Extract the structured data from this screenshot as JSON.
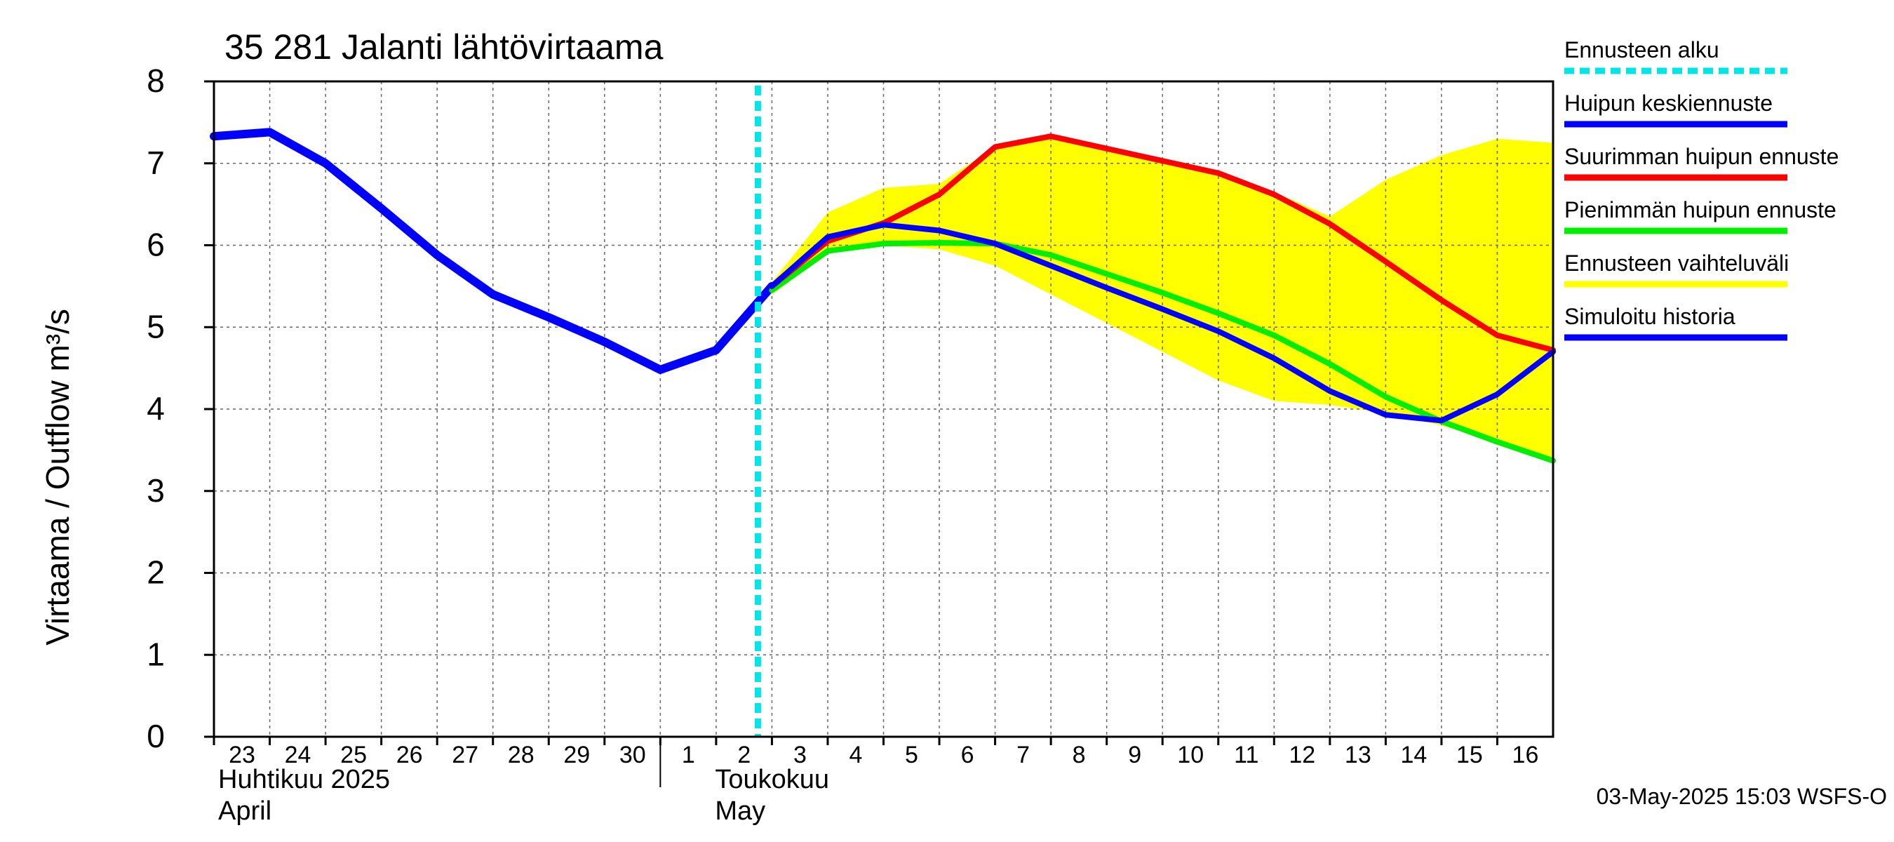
{
  "chart_data": {
    "type": "line",
    "title": "35 281 Jalanti lähtövirtaama",
    "ylabel": "Virtaama / Outflow    m³/s",
    "ylim": [
      0,
      8
    ],
    "yticks": [
      0,
      1,
      2,
      3,
      4,
      5,
      6,
      7,
      8
    ],
    "xlim": [
      "2025-04-23",
      "2025-05-17"
    ],
    "grid": true,
    "x_tick_labels": [
      {
        "date": "2025-04-23",
        "label": "23"
      },
      {
        "date": "2025-04-24",
        "label": "24"
      },
      {
        "date": "2025-04-25",
        "label": "25"
      },
      {
        "date": "2025-04-26",
        "label": "26"
      },
      {
        "date": "2025-04-27",
        "label": "27"
      },
      {
        "date": "2025-04-28",
        "label": "28"
      },
      {
        "date": "2025-04-29",
        "label": "29"
      },
      {
        "date": "2025-04-30",
        "label": "30"
      },
      {
        "date": "2025-05-01",
        "label": "1"
      },
      {
        "date": "2025-05-02",
        "label": "2"
      },
      {
        "date": "2025-05-03",
        "label": "3"
      },
      {
        "date": "2025-05-04",
        "label": "4"
      },
      {
        "date": "2025-05-05",
        "label": "5"
      },
      {
        "date": "2025-05-06",
        "label": "6"
      },
      {
        "date": "2025-05-07",
        "label": "7"
      },
      {
        "date": "2025-05-08",
        "label": "8"
      },
      {
        "date": "2025-05-09",
        "label": "9"
      },
      {
        "date": "2025-05-10",
        "label": "10"
      },
      {
        "date": "2025-05-11",
        "label": "11"
      },
      {
        "date": "2025-05-12",
        "label": "12"
      },
      {
        "date": "2025-05-13",
        "label": "13"
      },
      {
        "date": "2025-05-14",
        "label": "14"
      },
      {
        "date": "2025-05-15",
        "label": "15"
      },
      {
        "date": "2025-05-16",
        "label": "16"
      }
    ],
    "month_labels": [
      {
        "date": "2025-04-23",
        "line1": "Huhtikuu  2025",
        "line2": "April"
      },
      {
        "date": "2025-05-01",
        "line1": "Toukokuu",
        "line2": "May"
      }
    ],
    "forecast_start": "2025-05-03",
    "legend": {
      "placement": "right",
      "items": [
        {
          "label": "Ennusteen alku",
          "color": "#00e5e5",
          "style": "dashed"
        },
        {
          "label": "Huipun keskiennuste",
          "color": "#0000ff",
          "style": "solid"
        },
        {
          "label": "Suurimman huipun ennuste",
          "color": "#ff0000",
          "style": "solid"
        },
        {
          "label": "Pienimmän huipun ennuste",
          "color": "#00ee00",
          "style": "solid"
        },
        {
          "label": "Ennusteen vaihteluväli",
          "color": "#ffff00",
          "style": "solid"
        },
        {
          "label": "Simuloitu historia",
          "color": "#0000ff",
          "style": "solid"
        }
      ]
    },
    "series": [
      {
        "name": "Ennusteen vaihteluväli",
        "type": "band",
        "color": "#ffff00",
        "x": [
          "2025-05-03",
          "2025-05-04",
          "2025-05-05",
          "2025-05-06",
          "2025-05-07",
          "2025-05-08",
          "2025-05-09",
          "2025-05-10",
          "2025-05-11",
          "2025-05-12",
          "2025-05-13",
          "2025-05-14",
          "2025-05-15",
          "2025-05-16",
          "2025-05-17"
        ],
        "upper": [
          5.55,
          6.4,
          6.7,
          6.75,
          7.2,
          7.35,
          7.2,
          7.05,
          6.9,
          6.65,
          6.35,
          6.8,
          7.1,
          7.3,
          7.25
        ],
        "lower": [
          5.4,
          5.9,
          6.0,
          5.95,
          5.75,
          5.4,
          5.05,
          4.7,
          4.35,
          4.1,
          4.05,
          3.95,
          3.8,
          3.6,
          3.4
        ]
      },
      {
        "name": "Simuloitu historia",
        "color": "#0000ff",
        "x": [
          "2025-04-23",
          "2025-04-24",
          "2025-04-25",
          "2025-04-26",
          "2025-04-27",
          "2025-04-28",
          "2025-04-29",
          "2025-04-30",
          "2025-05-01",
          "2025-05-02",
          "2025-05-03"
        ],
        "values": [
          7.33,
          7.38,
          7.0,
          6.45,
          5.88,
          5.4,
          5.12,
          4.82,
          4.48,
          4.72,
          5.5
        ]
      },
      {
        "name": "Pienimmän huipun ennuste",
        "color": "#00ee00",
        "x": [
          "2025-05-03",
          "2025-05-04",
          "2025-05-05",
          "2025-05-06",
          "2025-05-07",
          "2025-05-08",
          "2025-05-09",
          "2025-05-10",
          "2025-05-11",
          "2025-05-12",
          "2025-05-13",
          "2025-05-14",
          "2025-05-15",
          "2025-05-16",
          "2025-05-17"
        ],
        "values": [
          5.45,
          5.93,
          6.02,
          6.03,
          6.02,
          5.88,
          5.65,
          5.42,
          5.17,
          4.9,
          4.55,
          4.15,
          3.85,
          3.6,
          3.37
        ]
      },
      {
        "name": "Suurimman huipun ennuste",
        "color": "#ff0000",
        "x": [
          "2025-05-03",
          "2025-05-04",
          "2025-05-05",
          "2025-05-06",
          "2025-05-07",
          "2025-05-08",
          "2025-05-09",
          "2025-05-10",
          "2025-05-11",
          "2025-05-12",
          "2025-05-13",
          "2025-05-14",
          "2025-05-15",
          "2025-05-16",
          "2025-05-17"
        ],
        "values": [
          5.5,
          6.05,
          6.27,
          6.62,
          7.2,
          7.33,
          7.18,
          7.03,
          6.88,
          6.62,
          6.26,
          5.8,
          5.33,
          4.9,
          4.72
        ]
      },
      {
        "name": "Huipun keskiennuste",
        "color": "#0000ff",
        "x": [
          "2025-05-03",
          "2025-05-04",
          "2025-05-05",
          "2025-05-06",
          "2025-05-07",
          "2025-05-08",
          "2025-05-09",
          "2025-05-10",
          "2025-05-11",
          "2025-05-12",
          "2025-05-13",
          "2025-05-14",
          "2025-05-15",
          "2025-05-16",
          "2025-05-17"
        ],
        "values": [
          5.5,
          6.1,
          6.25,
          6.18,
          6.02,
          5.75,
          5.48,
          5.22,
          4.95,
          4.62,
          4.22,
          3.93,
          3.86,
          4.18,
          4.7
        ]
      }
    ],
    "footer": "03-May-2025 15:03 WSFS-O"
  }
}
